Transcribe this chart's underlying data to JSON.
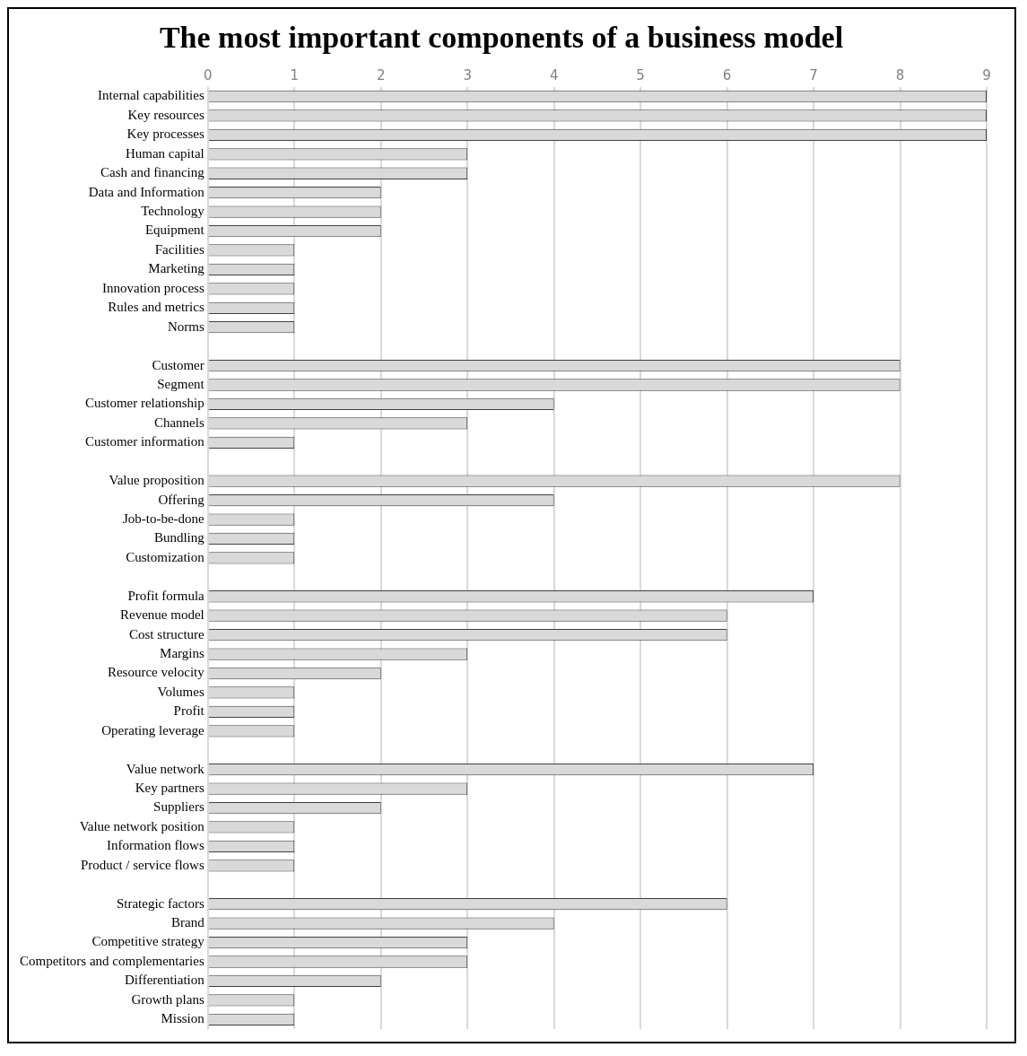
{
  "chart_data": {
    "type": "bar",
    "title": "The most important components of a business model",
    "orientation": "horizontal",
    "categories": [
      "Internal capabilities",
      "Key resources",
      "Key processes",
      "Human capital",
      "Cash and financing",
      "Data and Information",
      "Technology",
      "Equipment",
      "Facilities",
      "Marketing",
      "Innovation process",
      "Rules and metrics",
      "Norms",
      null,
      "Customer",
      "Segment",
      "Customer relationship",
      "Channels",
      "Customer information",
      null,
      "Value proposition",
      "Offering",
      "Job-to-be-done",
      "Bundling",
      "Customization",
      null,
      "Profit formula",
      "Revenue model",
      "Cost structure",
      "Margins",
      "Resource velocity",
      "Volumes",
      "Profit",
      "Operating leverage",
      null,
      "Value network",
      "Key partners",
      "Suppliers",
      "Value network position",
      "Information flows",
      "Product / service flows",
      null,
      "Strategic factors",
      "Brand",
      "Competitive strategy",
      "Competitors and complementaries",
      "Differentiation",
      "Growth plans",
      "Mission"
    ],
    "values": [
      9,
      9,
      9,
      3,
      3,
      2,
      2,
      2,
      1,
      1,
      1,
      1,
      1,
      null,
      8,
      8,
      4,
      3,
      1,
      null,
      8,
      4,
      1,
      1,
      1,
      null,
      7,
      6,
      6,
      3,
      2,
      1,
      1,
      1,
      null,
      7,
      3,
      2,
      1,
      1,
      1,
      null,
      6,
      4,
      3,
      3,
      2,
      1,
      1
    ],
    "color": "#d9d9d9",
    "xlim": [
      0,
      9
    ],
    "xticks": [
      0,
      1,
      2,
      3,
      4,
      5,
      6,
      7,
      8,
      9
    ],
    "grid": "x"
  }
}
